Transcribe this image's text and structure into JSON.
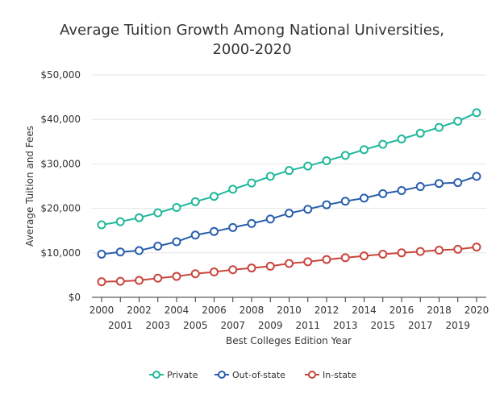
{
  "chart_data": {
    "type": "line",
    "title_line1": "Average Tuition Growth Among National Universities,",
    "title_line2": "2000-2020",
    "xlabel": "Best Colleges Edition Year",
    "ylabel": "Average Tuition and Fees",
    "x": [
      2000,
      2001,
      2002,
      2003,
      2004,
      2005,
      2006,
      2007,
      2008,
      2009,
      2010,
      2011,
      2012,
      2013,
      2014,
      2015,
      2016,
      2017,
      2018,
      2019,
      2020
    ],
    "x_tick_labels": [
      "2000",
      "2001",
      "2002",
      "2003",
      "2004",
      "2005",
      "2006",
      "2007",
      "2008",
      "2009",
      "2010",
      "2011",
      "2012",
      "2013",
      "2014",
      "2015",
      "2016",
      "2017",
      "2018",
      "2019",
      "2020"
    ],
    "ylim": [
      0,
      50000
    ],
    "y_ticks": [
      0,
      10000,
      20000,
      30000,
      40000,
      50000
    ],
    "y_tick_labels": [
      "$0",
      "$10,000",
      "$20,000",
      "$30,000",
      "$40,000",
      "$50,000"
    ],
    "grid": true,
    "legend_position": "bottom-center",
    "series": [
      {
        "name": "Private",
        "color": "#1fb89b",
        "values": [
          16300,
          17000,
          17900,
          19000,
          20200,
          21500,
          22700,
          24300,
          25700,
          27200,
          28500,
          29500,
          30700,
          31900,
          33200,
          34400,
          35600,
          36900,
          38200,
          39600,
          41500
        ]
      },
      {
        "name": "Out-of-state",
        "color": "#2a5fad",
        "values": [
          9700,
          10200,
          10500,
          11500,
          12500,
          14000,
          14800,
          15700,
          16600,
          17600,
          18900,
          19800,
          20800,
          21600,
          22300,
          23300,
          24000,
          24900,
          25600,
          25800,
          27200
        ]
      },
      {
        "name": "In-state",
        "color": "#c9453c",
        "values": [
          3500,
          3600,
          3800,
          4300,
          4700,
          5300,
          5700,
          6200,
          6600,
          7000,
          7600,
          8000,
          8500,
          8900,
          9300,
          9700,
          10000,
          10300,
          10600,
          10800,
          11300
        ]
      }
    ]
  }
}
